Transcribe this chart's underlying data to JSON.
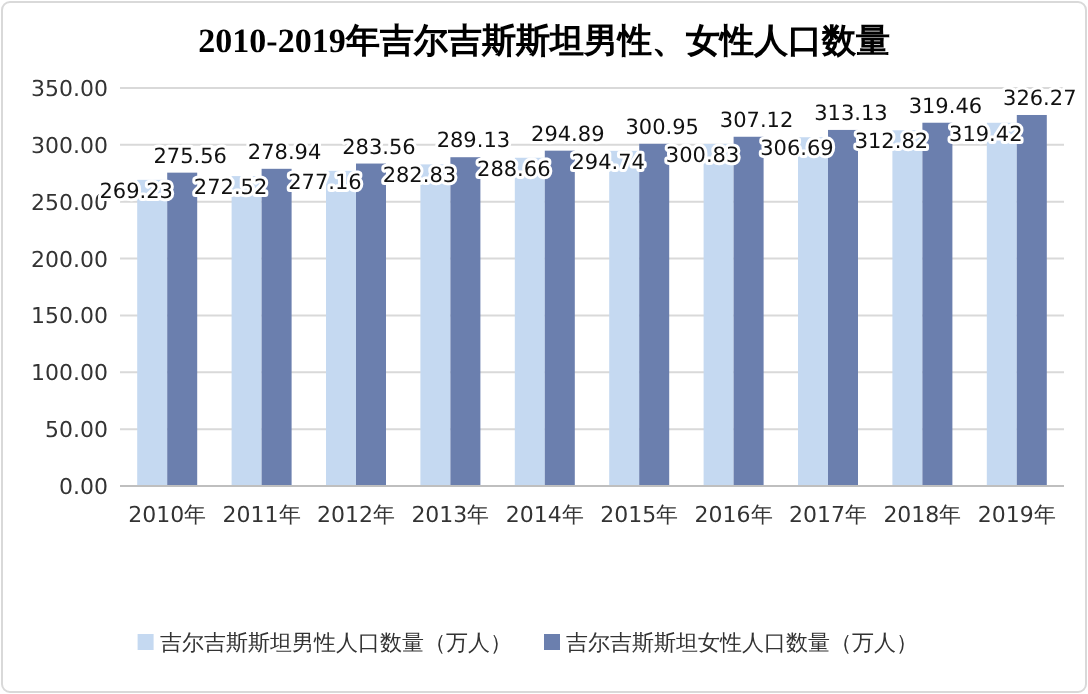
{
  "chart_data": {
    "type": "bar",
    "title": "2010-2019年吉尔吉斯斯坦男性、女性人口数量",
    "categories": [
      "2010年",
      "2011年",
      "2012年",
      "2013年",
      "2014年",
      "2015年",
      "2016年",
      "2017年",
      "2018年",
      "2019年"
    ],
    "series": [
      {
        "name": "吉尔吉斯斯坦男性人口数量（万人）",
        "color": "#c5d9f1",
        "values": [
          269.23,
          272.52,
          277.16,
          282.83,
          288.66,
          294.74,
          300.83,
          306.69,
          312.82,
          319.42
        ]
      },
      {
        "name": "吉尔吉斯斯坦女性人口数量（万人）",
        "color": "#6b7fae",
        "values": [
          275.56,
          278.94,
          283.56,
          289.13,
          294.89,
          300.95,
          307.12,
          313.13,
          319.46,
          326.27
        ]
      }
    ],
    "ylim": [
      0,
      350
    ],
    "yticks": [
      {
        "value": 0,
        "label": "0.00"
      },
      {
        "value": 50,
        "label": "50.00"
      },
      {
        "value": 100,
        "label": "100.00"
      },
      {
        "value": 150,
        "label": "150.00"
      },
      {
        "value": 200,
        "label": "200.00"
      },
      {
        "value": 250,
        "label": "250.00"
      },
      {
        "value": 300,
        "label": "300.00"
      },
      {
        "value": 350,
        "label": "350.00"
      }
    ],
    "grid": "y",
    "data_labels": true,
    "legend": "bottom"
  }
}
